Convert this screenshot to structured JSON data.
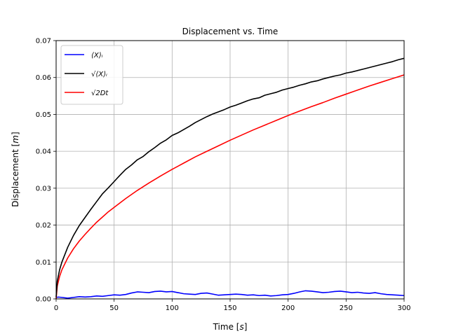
{
  "chart_data": {
    "type": "line",
    "title": "Displacement vs. Time",
    "xlabel": "Time [s]",
    "xlabel_main": "Time",
    "xlabel_unit": "s",
    "ylabel": "Displacement [m]",
    "ylabel_main": "Displacement",
    "ylabel_unit": "m",
    "xlim": [
      0,
      300
    ],
    "ylim": [
      0,
      0.07
    ],
    "xticks": [
      0,
      50,
      100,
      150,
      200,
      250,
      300
    ],
    "xtick_labels": [
      "0",
      "50",
      "100",
      "150",
      "200",
      "250",
      "300"
    ],
    "yticks": [
      0,
      0.01,
      0.02,
      0.03,
      0.04,
      0.05,
      0.06,
      0.07
    ],
    "ytick_labels": [
      "0.00",
      "0.01",
      "0.02",
      "0.03",
      "0.04",
      "0.05",
      "0.06",
      "0.07"
    ],
    "grid": true,
    "legend_position": "top-left",
    "series": [
      {
        "name": "⟨X⟩ᵢ",
        "color": "#0000ff",
        "x": [
          0,
          2,
          5,
          10,
          15,
          20,
          25,
          30,
          35,
          40,
          45,
          50,
          55,
          60,
          65,
          70,
          75,
          80,
          85,
          90,
          95,
          100,
          105,
          110,
          115,
          120,
          125,
          130,
          135,
          140,
          145,
          150,
          155,
          160,
          165,
          170,
          175,
          180,
          185,
          190,
          195,
          200,
          205,
          210,
          215,
          220,
          225,
          230,
          235,
          240,
          245,
          250,
          255,
          260,
          265,
          270,
          275,
          280,
          285,
          290,
          295,
          300
        ],
        "y": [
          0.0004,
          0.0005,
          0.0004,
          0.0002,
          0.0004,
          0.0006,
          0.0005,
          0.0006,
          0.0008,
          0.0007,
          0.0009,
          0.0011,
          0.001,
          0.0012,
          0.0016,
          0.0019,
          0.0018,
          0.0017,
          0.002,
          0.0021,
          0.0019,
          0.002,
          0.0017,
          0.0014,
          0.0013,
          0.0012,
          0.0015,
          0.0016,
          0.0013,
          0.001,
          0.0011,
          0.0012,
          0.0013,
          0.0012,
          0.001,
          0.0011,
          0.0009,
          0.001,
          0.0008,
          0.0009,
          0.0011,
          0.0012,
          0.0015,
          0.0019,
          0.0022,
          0.0021,
          0.0019,
          0.0017,
          0.0018,
          0.002,
          0.0021,
          0.0019,
          0.0017,
          0.0018,
          0.0016,
          0.0015,
          0.0017,
          0.0014,
          0.0012,
          0.0011,
          0.001,
          0.0009
        ]
      },
      {
        "name": "√⟨X⟩ᵢ",
        "color": "#000000",
        "x": [
          0,
          1,
          3,
          5,
          10,
          15,
          20,
          25,
          30,
          35,
          40,
          45,
          50,
          55,
          60,
          65,
          70,
          75,
          80,
          85,
          90,
          95,
          100,
          105,
          110,
          115,
          120,
          125,
          130,
          135,
          140,
          145,
          150,
          155,
          160,
          165,
          170,
          175,
          180,
          185,
          190,
          195,
          200,
          205,
          210,
          215,
          220,
          225,
          230,
          235,
          240,
          245,
          250,
          255,
          260,
          265,
          270,
          275,
          280,
          285,
          290,
          295,
          300
        ],
        "y": [
          0.0005,
          0.0048,
          0.0079,
          0.01,
          0.014,
          0.0172,
          0.0199,
          0.0221,
          0.0243,
          0.0264,
          0.0285,
          0.0301,
          0.0318,
          0.0335,
          0.0351,
          0.0363,
          0.0377,
          0.0386,
          0.0399,
          0.041,
          0.0422,
          0.0431,
          0.0443,
          0.045,
          0.0459,
          0.0468,
          0.0478,
          0.0486,
          0.0494,
          0.0501,
          0.0507,
          0.0513,
          0.052,
          0.0525,
          0.0531,
          0.0537,
          0.0542,
          0.0545,
          0.0552,
          0.0556,
          0.056,
          0.0566,
          0.057,
          0.0574,
          0.0579,
          0.0583,
          0.0588,
          0.0591,
          0.0596,
          0.06,
          0.0604,
          0.0607,
          0.0612,
          0.0615,
          0.0619,
          0.0623,
          0.0627,
          0.0631,
          0.0635,
          0.0639,
          0.0643,
          0.0648,
          0.0652
        ]
      },
      {
        "name": "√2Dt",
        "color": "#ff0000",
        "x": [
          0,
          1,
          3,
          5,
          10,
          15,
          20,
          25,
          30,
          35,
          40,
          45,
          50,
          60,
          70,
          80,
          90,
          100,
          110,
          120,
          130,
          140,
          150,
          160,
          170,
          180,
          190,
          200,
          210,
          220,
          230,
          240,
          250,
          260,
          270,
          280,
          290,
          300
        ],
        "y": [
          0,
          0.0035,
          0.0061,
          0.0079,
          0.0111,
          0.0136,
          0.0157,
          0.0175,
          0.0192,
          0.0208,
          0.0222,
          0.0236,
          0.0248,
          0.0272,
          0.0294,
          0.0314,
          0.0333,
          0.0351,
          0.0368,
          0.0385,
          0.04,
          0.0415,
          0.043,
          0.0444,
          0.0458,
          0.0471,
          0.0484,
          0.0497,
          0.0509,
          0.0521,
          0.0532,
          0.0544,
          0.0555,
          0.0566,
          0.0577,
          0.0587,
          0.0597,
          0.0607
        ]
      }
    ]
  }
}
